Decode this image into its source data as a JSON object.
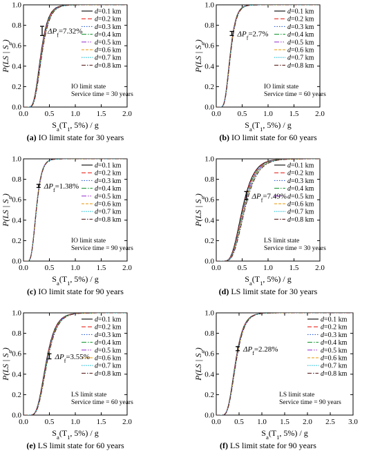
{
  "series_colors": [
    "#000000",
    "#e8261f",
    "#2f5fd0",
    "#1e9b3a",
    "#9f3fd4",
    "#e99400",
    "#18b6d2",
    "#5c2424"
  ],
  "series_dash": [
    "",
    "6,3",
    "1.5,2",
    "7,2,1.5,2",
    "7,2,1.5,2,1.5,2",
    "4,2",
    "1.5,1.5",
    "6,2,1.5,2"
  ],
  "chart_data": [
    {
      "type": "line",
      "caption_letter": "(a)",
      "caption_text": " IO limit state for 30 years",
      "ylabel": "P(LS | S_a)",
      "xlabel": "S_a(T_1, 5%) / g",
      "xlim": [
        0,
        2.0
      ],
      "ylim": [
        0,
        1.0
      ],
      "xticks": [
        0.0,
        0.5,
        1.0,
        1.5,
        2.0
      ],
      "xticklabels": [
        "0.0",
        "0.5",
        "1.0",
        "1.5",
        "2.0"
      ],
      "yticks": [
        0.0,
        0.2,
        0.4,
        0.6,
        0.8,
        1.0
      ],
      "yticklabels": [
        "0.0",
        "0.2",
        "0.4",
        "0.6",
        "0.8",
        "1.0"
      ],
      "legend": [
        "d=0.1 km",
        "d=0.2 km",
        "d=0.3 km",
        "d=0.4 km",
        "d=0.5 km",
        "d=0.6 km",
        "d=0.7 km",
        "d=0.8 km"
      ],
      "legend_position": "right",
      "series": [
        {
          "name": "d=0.1 km",
          "median": 0.33,
          "beta": 0.34
        },
        {
          "name": "d=0.2 km",
          "median": 0.333,
          "beta": 0.34
        },
        {
          "name": "d=0.3 km",
          "median": 0.336,
          "beta": 0.34
        },
        {
          "name": "d=0.4 km",
          "median": 0.34,
          "beta": 0.34
        },
        {
          "name": "d=0.5 km",
          "median": 0.343,
          "beta": 0.34
        },
        {
          "name": "d=0.6 km",
          "median": 0.346,
          "beta": 0.34
        },
        {
          "name": "d=0.7 km",
          "median": 0.349,
          "beta": 0.34
        },
        {
          "name": "d=0.8 km",
          "median": 0.352,
          "beta": 0.34
        }
      ],
      "annotation": {
        "text": "ΔP_f=7.32%",
        "x": 0.36,
        "y_low": 0.7,
        "y_high": 0.79
      },
      "state_label": "IO limit state",
      "service_label": "Service time = 30 years"
    },
    {
      "type": "line",
      "caption_letter": "(b)",
      "caption_text": " IO limit state for 60 years",
      "ylabel": "P(LS | S_a)",
      "xlabel": "S_a(T_1, 5%) / g",
      "xlim": [
        0,
        2.0
      ],
      "ylim": [
        0,
        1.0
      ],
      "xticks": [
        0.0,
        0.5,
        1.0,
        1.5,
        2.0
      ],
      "xticklabels": [
        "0.0",
        "0.5",
        "1.0",
        "1.5",
        "2.0"
      ],
      "yticks": [
        0.0,
        0.2,
        0.4,
        0.6,
        0.8,
        1.0
      ],
      "yticklabels": [
        "0.0",
        "0.2",
        "0.4",
        "0.6",
        "0.8",
        "1.0"
      ],
      "legend": [
        "d=0.1 km",
        "d=0.2 km",
        "d=0.3 km",
        "d=0.4 km",
        "d=0.5 km",
        "d=0.6 km",
        "d=0.7 km",
        "d=0.8 km"
      ],
      "legend_position": "right",
      "series": [
        {
          "name": "d=0.1 km",
          "median": 0.265,
          "beta": 0.33
        },
        {
          "name": "d=0.2 km",
          "median": 0.266,
          "beta": 0.33
        },
        {
          "name": "d=0.3 km",
          "median": 0.268,
          "beta": 0.33
        },
        {
          "name": "d=0.4 km",
          "median": 0.269,
          "beta": 0.33
        },
        {
          "name": "d=0.5 km",
          "median": 0.27,
          "beta": 0.33
        },
        {
          "name": "d=0.6 km",
          "median": 0.271,
          "beta": 0.33
        },
        {
          "name": "d=0.7 km",
          "median": 0.272,
          "beta": 0.33
        },
        {
          "name": "d=0.8 km",
          "median": 0.274,
          "beta": 0.33
        }
      ],
      "annotation": {
        "text": "ΔP_f=2.7%",
        "x": 0.3,
        "y_low": 0.7,
        "y_high": 0.74
      },
      "state_label": "IO limit state",
      "service_label": "Service time = 60 years"
    },
    {
      "type": "line",
      "caption_letter": "(c)",
      "caption_text": " IO limit state for 90 years",
      "ylabel": "P(LS | S_a)",
      "xlabel": "S_a(T_1, 5%) / g",
      "xlim": [
        0,
        2.0
      ],
      "ylim": [
        0,
        1.0
      ],
      "xticks": [
        0.0,
        0.5,
        1.0,
        1.5,
        2.0
      ],
      "xticklabels": [
        "0.0",
        "0.5",
        "1.0",
        "1.5",
        "2.0"
      ],
      "yticks": [
        0.0,
        0.2,
        0.4,
        0.6,
        0.8,
        1.0
      ],
      "yticklabels": [
        "0.0",
        "0.2",
        "0.4",
        "0.6",
        "0.8",
        "1.0"
      ],
      "legend": [
        "d=0.1 km",
        "d=0.2 km",
        "d=0.3 km",
        "d=0.4 km",
        "d=0.5 km",
        "d=0.6 km",
        "d=0.7 km",
        "d=0.8 km"
      ],
      "legend_position": "right",
      "series": [
        {
          "name": "d=0.1 km",
          "median": 0.245,
          "beta": 0.33
        },
        {
          "name": "d=0.2 km",
          "median": 0.246,
          "beta": 0.33
        },
        {
          "name": "d=0.3 km",
          "median": 0.246,
          "beta": 0.33
        },
        {
          "name": "d=0.4 km",
          "median": 0.247,
          "beta": 0.33
        },
        {
          "name": "d=0.5 km",
          "median": 0.248,
          "beta": 0.33
        },
        {
          "name": "d=0.6 km",
          "median": 0.248,
          "beta": 0.33
        },
        {
          "name": "d=0.7 km",
          "median": 0.249,
          "beta": 0.33
        },
        {
          "name": "d=0.8 km",
          "median": 0.25,
          "beta": 0.33
        }
      ],
      "annotation": {
        "text": "ΔP_f=1.38%",
        "x": 0.29,
        "y_low": 0.72,
        "y_high": 0.75
      },
      "state_label": "IO limit state",
      "service_label": "Service time = 90 years"
    },
    {
      "type": "line",
      "caption_letter": "(d)",
      "caption_text": " LS limit state for 30 years",
      "ylabel": "P(LS | S_a)",
      "xlabel": "S_a(T_1, 5%) / g",
      "xlim": [
        0,
        2.0
      ],
      "ylim": [
        0,
        1.0
      ],
      "xticks": [
        0.0,
        0.5,
        1.0,
        1.5,
        2.0
      ],
      "xticklabels": [
        "0.0",
        "0.5",
        "1.0",
        "1.5",
        "2.0"
      ],
      "yticks": [
        0.0,
        0.2,
        0.4,
        0.6,
        0.8,
        1.0
      ],
      "yticklabels": [
        "0.0",
        "0.2",
        "0.4",
        "0.6",
        "0.8",
        "1.0"
      ],
      "legend": [
        "d=0.1 km",
        "d=0.2 km",
        "d=0.3 km",
        "d=0.4 km",
        "d=0.5 km",
        "d=0.6 km",
        "d=0.7 km",
        "d=0.8 km"
      ],
      "legend_position": "right",
      "series": [
        {
          "name": "d=0.1 km",
          "median": 0.5,
          "beta": 0.35
        },
        {
          "name": "d=0.2 km",
          "median": 0.507,
          "beta": 0.35
        },
        {
          "name": "d=0.3 km",
          "median": 0.514,
          "beta": 0.35
        },
        {
          "name": "d=0.4 km",
          "median": 0.521,
          "beta": 0.35
        },
        {
          "name": "d=0.5 km",
          "median": 0.528,
          "beta": 0.35
        },
        {
          "name": "d=0.6 km",
          "median": 0.535,
          "beta": 0.35
        },
        {
          "name": "d=0.7 km",
          "median": 0.542,
          "beta": 0.35
        },
        {
          "name": "d=0.8 km",
          "median": 0.55,
          "beta": 0.35
        }
      ],
      "annotation": {
        "text": "ΔP_f=7.49%",
        "x": 0.58,
        "y_low": 0.6,
        "y_high": 0.68
      },
      "state_label": "LS limit state",
      "service_label": "Service time = 30 years"
    },
    {
      "type": "line",
      "caption_letter": "(e)",
      "caption_text": " LS limit state for 60 years",
      "ylabel": "P(LS | S_a)",
      "xlabel": "S_a(T_1, 5%) / g",
      "xlim": [
        0,
        2.0
      ],
      "ylim": [
        0,
        1.0
      ],
      "xticks": [
        0.0,
        0.5,
        1.0,
        1.5,
        2.0
      ],
      "xticklabels": [
        "0.0",
        "0.5",
        "1.0",
        "1.5",
        "2.0"
      ],
      "yticks": [
        0.0,
        0.2,
        0.4,
        0.6,
        0.8,
        1.0
      ],
      "yticklabels": [
        "0.0",
        "0.2",
        "0.4",
        "0.6",
        "0.8",
        "1.0"
      ],
      "legend": [
        "d=0.1 km",
        "d=0.2 km",
        "d=0.3 km",
        "d=0.4 km",
        "d=0.5 km",
        "d=0.6 km",
        "d=0.7 km",
        "d=0.8 km"
      ],
      "legend_position": "right",
      "series": [
        {
          "name": "d=0.1 km",
          "median": 0.43,
          "beta": 0.34
        },
        {
          "name": "d=0.2 km",
          "median": 0.433,
          "beta": 0.34
        },
        {
          "name": "d=0.3 km",
          "median": 0.436,
          "beta": 0.34
        },
        {
          "name": "d=0.4 km",
          "median": 0.439,
          "beta": 0.34
        },
        {
          "name": "d=0.5 km",
          "median": 0.442,
          "beta": 0.34
        },
        {
          "name": "d=0.6 km",
          "median": 0.445,
          "beta": 0.34
        },
        {
          "name": "d=0.7 km",
          "median": 0.448,
          "beta": 0.34
        },
        {
          "name": "d=0.8 km",
          "median": 0.451,
          "beta": 0.34
        }
      ],
      "annotation": {
        "text": "ΔP_f=3.55%",
        "x": 0.5,
        "y_low": 0.55,
        "y_high": 0.6
      },
      "state_label": "LS limit state",
      "service_label": "Service time = 60 years"
    },
    {
      "type": "line",
      "caption_letter": "(f)",
      "caption_text": " LS limit state for 90 years",
      "ylabel": "P(LS | S_a)",
      "xlabel": "S_a(T_1, 5%) / g",
      "xlim": [
        0,
        3.0
      ],
      "ylim": [
        0,
        1.0
      ],
      "xticks": [
        0.0,
        0.5,
        1.0,
        1.5,
        2.0,
        2.5,
        3.0
      ],
      "xticklabels": [
        "0.0",
        "0.5",
        "1.0",
        "1.5",
        "2.0",
        "2.5",
        "3.0"
      ],
      "yticks": [
        0.0,
        0.2,
        0.4,
        0.6,
        0.8,
        1.0
      ],
      "yticklabels": [
        "0.0",
        "0.2",
        "0.4",
        "0.6",
        "0.8",
        "1.0"
      ],
      "legend": [
        "d=0.1 km",
        "d=0.2 km",
        "d=0.3 km",
        "d=0.4 km",
        "d=0.5 km",
        "d=0.6 km",
        "d=0.7 km",
        "d=0.8 km"
      ],
      "legend_position": "right",
      "series": [
        {
          "name": "d=0.1 km",
          "median": 0.415,
          "beta": 0.34
        },
        {
          "name": "d=0.2 km",
          "median": 0.417,
          "beta": 0.34
        },
        {
          "name": "d=0.3 km",
          "median": 0.419,
          "beta": 0.34
        },
        {
          "name": "d=0.4 km",
          "median": 0.421,
          "beta": 0.34
        },
        {
          "name": "d=0.5 km",
          "median": 0.423,
          "beta": 0.34
        },
        {
          "name": "d=0.6 km",
          "median": 0.425,
          "beta": 0.34
        },
        {
          "name": "d=0.7 km",
          "median": 0.427,
          "beta": 0.34
        },
        {
          "name": "d=0.8 km",
          "median": 0.429,
          "beta": 0.34
        }
      ],
      "annotation": {
        "text": "ΔP_f=2.28%",
        "x": 0.47,
        "y_low": 0.63,
        "y_high": 0.67
      },
      "state_label": "LS limit state",
      "service_label": "Service time = 90 years"
    }
  ]
}
